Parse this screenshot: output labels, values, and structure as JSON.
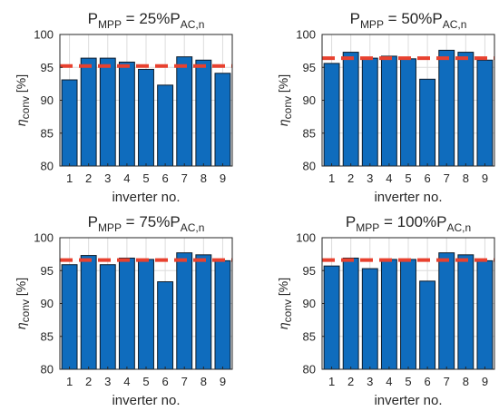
{
  "chart_data": [
    {
      "type": "bar",
      "title": {
        "main": "P",
        "main_sub": "MPP",
        "mid": " = 25%P",
        "end_sub": "AC,n"
      },
      "categories": [
        "1",
        "2",
        "3",
        "4",
        "5",
        "6",
        "7",
        "8",
        "9"
      ],
      "values": [
        93.1,
        96.4,
        96.4,
        95.8,
        94.7,
        92.3,
        96.6,
        96.1,
        94.1
      ],
      "reference_line": {
        "value": 95.2,
        "color": "#e8412f",
        "style": "dashed"
      },
      "xlabel": "inverter no.",
      "ylabel": {
        "symbol": "η",
        "sub": "conv",
        "unit": "[%]"
      },
      "ylim": [
        80,
        100
      ],
      "yticks": [
        "80",
        "85",
        "90",
        "95",
        "100"
      ],
      "grid": true
    },
    {
      "type": "bar",
      "title": {
        "main": "P",
        "main_sub": "MPP",
        "mid": " = 50%P",
        "end_sub": "AC,n"
      },
      "categories": [
        "1",
        "2",
        "3",
        "4",
        "5",
        "6",
        "7",
        "8",
        "9"
      ],
      "values": [
        95.6,
        97.3,
        96.4,
        96.7,
        96.3,
        93.2,
        97.6,
        97.3,
        96.1
      ],
      "reference_line": {
        "value": 96.4,
        "color": "#e8412f",
        "style": "dashed"
      },
      "xlabel": "inverter no.",
      "ylabel": {
        "symbol": "η",
        "sub": "conv",
        "unit": "[%]"
      },
      "ylim": [
        80,
        100
      ],
      "yticks": [
        "80",
        "85",
        "90",
        "95",
        "100"
      ],
      "grid": true
    },
    {
      "type": "bar",
      "title": {
        "main": "P",
        "main_sub": "MPP",
        "mid": " = 75%P",
        "end_sub": "AC,n"
      },
      "categories": [
        "1",
        "2",
        "3",
        "4",
        "5",
        "6",
        "7",
        "8",
        "9"
      ],
      "values": [
        95.9,
        97.3,
        95.9,
        96.9,
        96.7,
        93.3,
        97.7,
        97.4,
        96.5
      ],
      "reference_line": {
        "value": 96.6,
        "color": "#e8412f",
        "style": "dashed"
      },
      "xlabel": "inverter no.",
      "ylabel": {
        "symbol": "η",
        "sub": "conv",
        "unit": "[%]"
      },
      "ylim": [
        80,
        100
      ],
      "yticks": [
        "80",
        "85",
        "90",
        "95",
        "100"
      ],
      "grid": true
    },
    {
      "type": "bar",
      "title": {
        "main": "P",
        "main_sub": "MPP",
        "mid": " = 100%P",
        "end_sub": "AC,n"
      },
      "categories": [
        "1",
        "2",
        "3",
        "4",
        "5",
        "6",
        "7",
        "8",
        "9"
      ],
      "values": [
        95.7,
        96.9,
        95.3,
        96.7,
        96.7,
        93.4,
        97.7,
        97.4,
        96.5
      ],
      "reference_line": {
        "value": 96.6,
        "color": "#e8412f",
        "style": "dashed"
      },
      "xlabel": "inverter no.",
      "ylabel": {
        "symbol": "η",
        "sub": "conv",
        "unit": "[%]"
      },
      "ylim": [
        80,
        100
      ],
      "yticks": [
        "80",
        "85",
        "90",
        "95",
        "100"
      ],
      "grid": true
    }
  ],
  "colors": {
    "bar_fill": "#0f6cbd",
    "bar_edge": "#0d1b2a",
    "grid": "#dcdcdc",
    "axis": "#262626"
  }
}
